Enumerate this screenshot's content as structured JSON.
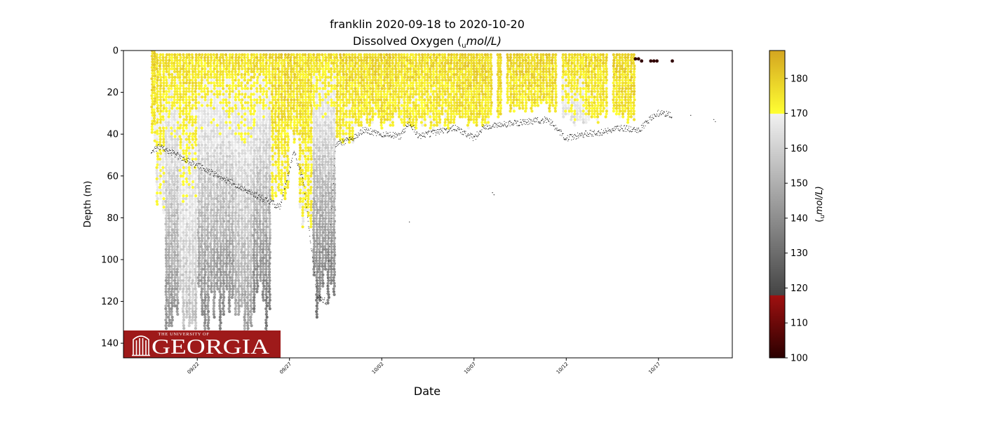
{
  "chart_data": {
    "type": "scatter",
    "title": "franklin 2020-09-18 to 2020-10-20",
    "subtitle": "Dissolved Oxygen (umol/L)",
    "subtitle_parts": {
      "pre": "Dissolved Oxygen (",
      "sub": "u",
      "post": "mol/L)"
    },
    "xlabel": "Date",
    "ylabel": "Depth (m)",
    "x_tick_labels": [
      "09/22",
      "09/27",
      "10/02",
      "10/07",
      "10/12",
      "10/17"
    ],
    "x_tick_dates": [
      "2020-09-22",
      "2020-09-27",
      "2020-10-02",
      "2020-10-07",
      "2020-10-12",
      "2020-10-17"
    ],
    "x_range": [
      "2020-09-18T00:00",
      "2020-10-21T00:00"
    ],
    "y_ticks": [
      0,
      20,
      40,
      60,
      80,
      100,
      120,
      140
    ],
    "y_range": [
      147,
      0
    ],
    "y_inverted": true,
    "grid": false,
    "colorbar": {
      "label_parts": {
        "pre": "(",
        "sub": "u",
        "post": "mol/L)"
      },
      "range": [
        100,
        188
      ],
      "ticks": [
        100,
        110,
        120,
        130,
        140,
        150,
        160,
        170,
        180
      ],
      "segments": [
        {
          "from": 100,
          "to": 118,
          "colors": [
            "#2a0000",
            "#a01010"
          ]
        },
        {
          "from": 118,
          "to": 170,
          "colors": [
            "#444444",
            "#f2f2f2"
          ]
        },
        {
          "from": 170,
          "to": 188,
          "colors": [
            "#ffff33",
            "#d4a520"
          ]
        }
      ]
    },
    "profiles": [
      {
        "start": "2020-09-19T12:00",
        "end": "2020-09-19T18:00",
        "top": 0,
        "bottom": 48,
        "oxy_top": 178,
        "oxy_bottom": 172
      },
      {
        "start": "2020-09-19T18:00",
        "end": "2020-09-20T06:00",
        "top": 2,
        "bottom": 85,
        "oxy_top": 177,
        "oxy_bottom": 165
      },
      {
        "start": "2020-09-20T06:00",
        "end": "2020-09-21T00:00",
        "top": 2,
        "bottom": 138,
        "oxy_top": 176,
        "oxy_bottom": 140
      },
      {
        "start": "2020-09-21T00:00",
        "end": "2020-09-22T00:00",
        "top": 2,
        "bottom": 138,
        "oxy_top": 177,
        "oxy_bottom": 155
      },
      {
        "start": "2020-09-22T00:00",
        "end": "2020-09-23T00:00",
        "top": 2,
        "bottom": 138,
        "oxy_top": 176,
        "oxy_bottom": 138
      },
      {
        "start": "2020-09-23T00:00",
        "end": "2020-09-24T00:00",
        "top": 2,
        "bottom": 138,
        "oxy_top": 177,
        "oxy_bottom": 135
      },
      {
        "start": "2020-09-24T00:00",
        "end": "2020-09-25T00:00",
        "top": 2,
        "bottom": 138,
        "oxy_top": 176,
        "oxy_bottom": 145
      },
      {
        "start": "2020-09-25T00:00",
        "end": "2020-09-26T00:00",
        "top": 2,
        "bottom": 135,
        "oxy_top": 177,
        "oxy_bottom": 132
      },
      {
        "start": "2020-09-26T00:00",
        "end": "2020-09-27T00:00",
        "top": 2,
        "bottom": 80,
        "oxy_top": 178,
        "oxy_bottom": 170
      },
      {
        "start": "2020-09-27T00:00",
        "end": "2020-09-27T12:00",
        "top": 2,
        "bottom": 45,
        "oxy_top": 178,
        "oxy_bottom": 172
      },
      {
        "start": "2020-09-27T12:00",
        "end": "2020-09-28T06:00",
        "top": 2,
        "bottom": 88,
        "oxy_top": 177,
        "oxy_bottom": 170
      },
      {
        "start": "2020-09-28T06:00",
        "end": "2020-09-29T12:00",
        "top": 2,
        "bottom": 128,
        "oxy_top": 176,
        "oxy_bottom": 132
      },
      {
        "start": "2020-09-29T12:00",
        "end": "2020-09-30T12:00",
        "top": 2,
        "bottom": 45,
        "oxy_top": 178,
        "oxy_bottom": 172
      },
      {
        "start": "2020-09-30T12:00",
        "end": "2020-10-03T00:00",
        "top": 2,
        "bottom": 38,
        "oxy_top": 178,
        "oxy_bottom": 173
      },
      {
        "start": "2020-10-03T00:00",
        "end": "2020-10-06T00:00",
        "top": 2,
        "bottom": 38,
        "oxy_top": 177,
        "oxy_bottom": 172
      },
      {
        "start": "2020-10-06T00:00",
        "end": "2020-10-08T00:00",
        "top": 2,
        "bottom": 38,
        "oxy_top": 178,
        "oxy_bottom": 174
      },
      {
        "start": "2020-10-08T06:00",
        "end": "2020-10-08T12:00",
        "top": 2,
        "bottom": 35,
        "oxy_top": 178,
        "oxy_bottom": 174
      },
      {
        "start": "2020-10-08T18:00",
        "end": "2020-10-11T12:00",
        "top": 2,
        "bottom": 30,
        "oxy_top": 178,
        "oxy_bottom": 174
      },
      {
        "start": "2020-10-11T18:00",
        "end": "2020-10-13T00:00",
        "top": 2,
        "bottom": 37,
        "oxy_top": 177,
        "oxy_bottom": 165
      },
      {
        "start": "2020-10-13T00:00",
        "end": "2020-10-14T06:00",
        "top": 2,
        "bottom": 36,
        "oxy_top": 177,
        "oxy_bottom": 172
      },
      {
        "start": "2020-10-14T12:00",
        "end": "2020-10-15T18:00",
        "top": 2,
        "bottom": 35,
        "oxy_top": 178,
        "oxy_bottom": 174
      }
    ],
    "low_oxygen_points": [
      {
        "x": "2020-10-15T18:00",
        "y": 4,
        "oxy": 101
      },
      {
        "x": "2020-10-15T22:00",
        "y": 4,
        "oxy": 101
      },
      {
        "x": "2020-10-16T02:00",
        "y": 5,
        "oxy": 101
      },
      {
        "x": "2020-10-16T14:00",
        "y": 5,
        "oxy": 101
      },
      {
        "x": "2020-10-16T18:00",
        "y": 5,
        "oxy": 101
      },
      {
        "x": "2020-10-16T22:00",
        "y": 5,
        "oxy": 101
      },
      {
        "x": "2020-10-17T18:00",
        "y": 5,
        "oxy": 101
      }
    ],
    "bottom_trace": [
      {
        "x": "2020-09-19T12:00",
        "y": 48
      },
      {
        "x": "2020-09-20T00:00",
        "y": 46
      },
      {
        "x": "2020-09-26T12:00",
        "y": 75
      },
      {
        "x": "2020-09-27T06:00",
        "y": 48
      },
      {
        "x": "2020-09-27T18:00",
        "y": 62
      },
      {
        "x": "2020-09-28T12:00",
        "y": 118
      },
      {
        "x": "2020-09-29T00:00",
        "y": 120
      },
      {
        "x": "2020-09-29T12:00",
        "y": 45
      },
      {
        "x": "2020-09-30T12:00",
        "y": 42
      },
      {
        "x": "2020-10-01T00:00",
        "y": 38
      },
      {
        "x": "2020-10-02T00:00",
        "y": 40
      },
      {
        "x": "2020-10-03T00:00",
        "y": 41
      },
      {
        "x": "2020-10-03T12:00",
        "y": 34
      },
      {
        "x": "2020-10-04T00:00",
        "y": 41
      },
      {
        "x": "2020-10-05T00:00",
        "y": 39
      },
      {
        "x": "2020-10-06T00:00",
        "y": 37
      },
      {
        "x": "2020-10-07T00:00",
        "y": 42
      },
      {
        "x": "2020-10-07T12:00",
        "y": 37
      },
      {
        "x": "2020-10-08T00:00",
        "y": 36
      },
      {
        "x": "2020-10-09T00:00",
        "y": 35
      },
      {
        "x": "2020-10-10T00:00",
        "y": 34
      },
      {
        "x": "2020-10-11T00:00",
        "y": 33
      },
      {
        "x": "2020-10-12T00:00",
        "y": 42
      },
      {
        "x": "2020-10-13T00:00",
        "y": 40
      },
      {
        "x": "2020-10-14T00:00",
        "y": 39
      },
      {
        "x": "2020-10-15T00:00",
        "y": 37
      },
      {
        "x": "2020-10-16T00:00",
        "y": 38
      },
      {
        "x": "2020-10-16T12:00",
        "y": 33
      },
      {
        "x": "2020-10-17T00:00",
        "y": 30
      },
      {
        "x": "2020-10-17T18:00",
        "y": 31
      }
    ],
    "stray_trace_points": [
      {
        "x": "2020-10-08T00:00",
        "y": 68
      },
      {
        "x": "2020-10-08T02:00",
        "y": 69
      },
      {
        "x": "2020-10-18T18:00",
        "y": 31
      },
      {
        "x": "2020-10-20T00:00",
        "y": 33
      },
      {
        "x": "2020-10-20T02:00",
        "y": 34
      },
      {
        "x": "2020-10-03T12:00",
        "y": 82
      }
    ]
  },
  "logo": {
    "top_text": "THE UNIVERSITY OF",
    "main_text": "GEORGIA",
    "background": "#9e1a1a"
  }
}
